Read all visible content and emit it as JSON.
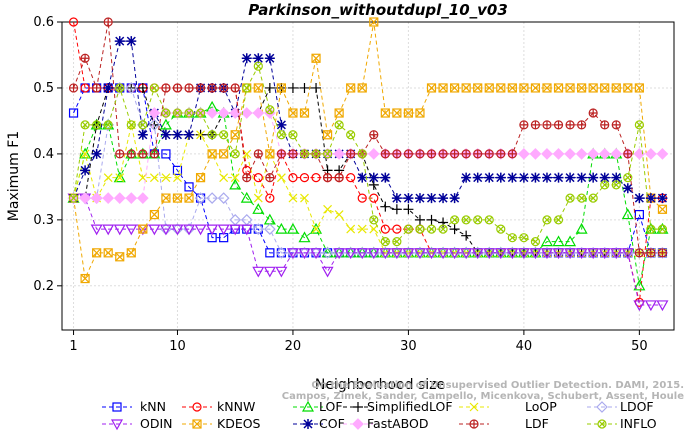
{
  "chart_data": {
    "type": "line",
    "title": "Parkinson_withoutdupl_10_v03",
    "xlabel": "Neighborhood size",
    "ylabel": "Maximum F1",
    "xlim": [
      1,
      52
    ],
    "ylim": [
      0.15,
      0.6
    ],
    "xticks": [
      "1",
      "10",
      "20",
      "30",
      "40",
      "50"
    ],
    "yticks": [
      "0.2",
      "0.3",
      "0.4",
      "0.5",
      "0.6"
    ],
    "legend_position": "bottom",
    "credit": [
      "Campos, Zimek, Sander, Campello, Micenkova, Schubert, Assent, Houle",
      "On the Evaluation of Unsupervised Outlier Detection. DAMI, 2015."
    ],
    "series": [
      {
        "name": "kNN",
        "color": "#0000ff",
        "marker": "square",
        "values": [
          0.462,
          0.5,
          0.5,
          0.5,
          0.5,
          0.5,
          0.5,
          0.4,
          0.4,
          0.375,
          0.35,
          0.333,
          0.273,
          0.273,
          0.286,
          0.286,
          0.286,
          0.25,
          0.25,
          0.25,
          0.25,
          0.25,
          0.25,
          0.25,
          0.25,
          0.25,
          0.25,
          0.25,
          0.25,
          0.25,
          0.25,
          0.25,
          0.25,
          0.25,
          0.25,
          0.25,
          0.25,
          0.25,
          0.25,
          0.25,
          0.25,
          0.25,
          0.25,
          0.25,
          0.25,
          0.25,
          0.25,
          0.25,
          0.25,
          0.308,
          0.25,
          0.25
        ]
      },
      {
        "name": "kNNW",
        "color": "#ff0000",
        "marker": "circle",
        "values": [
          0.6,
          0.5,
          0.5,
          0.5,
          0.5,
          0.5,
          0.5,
          0.5,
          0.5,
          0.5,
          0.5,
          0.5,
          0.5,
          0.5,
          0.5,
          0.375,
          0.364,
          0.333,
          0.4,
          0.364,
          0.364,
          0.364,
          0.364,
          0.364,
          0.364,
          0.333,
          0.333,
          0.286,
          0.286,
          0.286,
          0.286,
          0.25,
          0.25,
          0.25,
          0.25,
          0.25,
          0.25,
          0.25,
          0.25,
          0.25,
          0.25,
          0.25,
          0.25,
          0.25,
          0.25,
          0.25,
          0.25,
          0.25,
          0.25,
          0.175,
          0.333,
          0.333
        ]
      },
      {
        "name": "LOF",
        "color": "#00dd00",
        "marker": "triangle-up",
        "values": [
          0.333,
          0.4,
          0.444,
          0.444,
          0.364,
          0.4,
          0.4,
          0.4,
          0.444,
          0.462,
          0.462,
          0.462,
          0.471,
          0.462,
          0.353,
          0.333,
          0.316,
          0.3,
          0.286,
          0.286,
          0.273,
          0.286,
          0.25,
          0.25,
          0.25,
          0.25,
          0.25,
          0.25,
          0.25,
          0.25,
          0.25,
          0.25,
          0.25,
          0.25,
          0.25,
          0.25,
          0.25,
          0.25,
          0.25,
          0.25,
          0.25,
          0.267,
          0.267,
          0.267,
          0.286,
          0.4,
          0.4,
          0.4,
          0.308,
          0.2,
          0.286,
          0.286
        ]
      },
      {
        "name": "SimplifiedLOF",
        "color": "#000000",
        "marker": "plus",
        "values": [
          0.333,
          0.333,
          0.444,
          0.5,
          0.5,
          0.5,
          0.5,
          0.444,
          0.429,
          0.429,
          0.429,
          0.429,
          0.429,
          0.462,
          0.462,
          0.462,
          0.462,
          0.5,
          0.5,
          0.5,
          0.5,
          0.5,
          0.375,
          0.375,
          0.4,
          0.4,
          0.353,
          0.32,
          0.316,
          0.316,
          0.3,
          0.3,
          0.296,
          0.286,
          0.276,
          0.25,
          0.25,
          0.25,
          0.25,
          0.25,
          0.25,
          0.25,
          0.25,
          0.25,
          0.25,
          0.25,
          0.25,
          0.25,
          0.25,
          0.25,
          0.25,
          0.25
        ]
      },
      {
        "name": "LoOP",
        "color": "#e8e800",
        "marker": "cross",
        "values": [
          0.333,
          0.4,
          0.333,
          0.364,
          0.364,
          0.444,
          0.364,
          0.364,
          0.364,
          0.364,
          0.429,
          0.429,
          0.4,
          0.364,
          0.364,
          0.4,
          0.333,
          0.4,
          0.364,
          0.333,
          0.333,
          0.286,
          0.316,
          0.308,
          0.286,
          0.286,
          0.286,
          0.25,
          0.25,
          0.25,
          0.25,
          0.25,
          0.25,
          0.25,
          0.25,
          0.25,
          0.25,
          0.25,
          0.25,
          0.25,
          0.25,
          0.25,
          0.25,
          0.25,
          0.25,
          0.25,
          0.25,
          0.25,
          0.25,
          0.25,
          0.25,
          0.25
        ]
      },
      {
        "name": "LDOF",
        "color": "#aaaaee",
        "marker": "diamond",
        "values": [
          0.333,
          0.333,
          0.333,
          0.444,
          0.5,
          0.5,
          0.444,
          0.444,
          0.286,
          0.286,
          0.286,
          0.333,
          0.333,
          0.333,
          0.3,
          0.3,
          0.286,
          0.286,
          0.25,
          0.25,
          0.25,
          0.25,
          0.25,
          0.25,
          0.25,
          0.25,
          0.25,
          0.25,
          0.25,
          0.25,
          0.25,
          0.25,
          0.25,
          0.25,
          0.25,
          0.25,
          0.25,
          0.25,
          0.25,
          0.25,
          0.25,
          0.25,
          0.25,
          0.25,
          0.25,
          0.25,
          0.25,
          0.25,
          0.25,
          0.25,
          0.25,
          0.25
        ]
      },
      {
        "name": "ODIN",
        "color": "#a020f0",
        "marker": "triangle-down",
        "values": [
          0.333,
          0.333,
          0.286,
          0.286,
          0.286,
          0.286,
          0.286,
          0.286,
          0.286,
          0.286,
          0.286,
          0.286,
          0.286,
          0.286,
          0.286,
          0.286,
          0.222,
          0.222,
          0.222,
          0.25,
          0.25,
          0.25,
          0.222,
          0.25,
          0.25,
          0.25,
          0.25,
          0.25,
          0.25,
          0.25,
          0.25,
          0.25,
          0.25,
          0.25,
          0.25,
          0.25,
          0.25,
          0.25,
          0.25,
          0.25,
          0.25,
          0.25,
          0.25,
          0.25,
          0.25,
          0.25,
          0.25,
          0.25,
          0.25,
          0.171,
          0.171,
          0.171
        ]
      },
      {
        "name": "KDEOS",
        "color": "#f0a800",
        "marker": "square-x",
        "values": [
          0.333,
          0.211,
          0.25,
          0.25,
          0.244,
          0.25,
          0.286,
          0.308,
          0.333,
          0.333,
          0.333,
          0.364,
          0.4,
          0.4,
          0.429,
          0.5,
          0.5,
          0.4,
          0.5,
          0.462,
          0.462,
          0.545,
          0.429,
          0.462,
          0.5,
          0.5,
          0.6,
          0.462,
          0.462,
          0.462,
          0.462,
          0.5,
          0.5,
          0.5,
          0.5,
          0.5,
          0.5,
          0.5,
          0.5,
          0.5,
          0.5,
          0.5,
          0.5,
          0.5,
          0.5,
          0.5,
          0.5,
          0.5,
          0.5,
          0.5,
          0.333,
          0.316
        ]
      },
      {
        "name": "COF",
        "color": "#000099",
        "marker": "star",
        "values": [
          0.333,
          0.375,
          0.4,
          0.5,
          0.571,
          0.571,
          0.429,
          0.462,
          0.429,
          0.429,
          0.429,
          0.5,
          0.5,
          0.5,
          0.462,
          0.545,
          0.545,
          0.545,
          0.444,
          0.4,
          0.4,
          0.4,
          0.4,
          0.4,
          0.4,
          0.364,
          0.364,
          0.364,
          0.333,
          0.333,
          0.333,
          0.333,
          0.333,
          0.333,
          0.364,
          0.364,
          0.364,
          0.364,
          0.364,
          0.364,
          0.364,
          0.364,
          0.364,
          0.364,
          0.364,
          0.364,
          0.364,
          0.364,
          0.348,
          0.333,
          0.333,
          0.333
        ]
      },
      {
        "name": "FastABOD",
        "color": "#ffaaff",
        "marker": "diamond-filled",
        "values": [
          0.333,
          0.333,
          0.333,
          0.333,
          0.333,
          0.333,
          0.333,
          0.462,
          0.462,
          0.462,
          0.462,
          0.462,
          0.462,
          0.462,
          0.462,
          0.462,
          0.462,
          0.462,
          0.4,
          0.4,
          0.4,
          0.4,
          0.4,
          0.4,
          0.4,
          0.4,
          0.4,
          0.4,
          0.4,
          0.4,
          0.4,
          0.4,
          0.4,
          0.4,
          0.4,
          0.4,
          0.4,
          0.4,
          0.4,
          0.4,
          0.4,
          0.4,
          0.4,
          0.4,
          0.4,
          0.4,
          0.4,
          0.4,
          0.4,
          0.4,
          0.4,
          0.4
        ]
      },
      {
        "name": "LDF",
        "color": "#bb2222",
        "marker": "circle-plus",
        "values": [
          0.5,
          0.545,
          0.5,
          0.6,
          0.4,
          0.4,
          0.4,
          0.4,
          0.5,
          0.5,
          0.5,
          0.5,
          0.5,
          0.5,
          0.5,
          0.364,
          0.4,
          0.364,
          0.4,
          0.4,
          0.4,
          0.4,
          0.364,
          0.364,
          0.4,
          0.4,
          0.429,
          0.4,
          0.4,
          0.4,
          0.4,
          0.4,
          0.4,
          0.4,
          0.4,
          0.4,
          0.4,
          0.4,
          0.4,
          0.444,
          0.444,
          0.444,
          0.444,
          0.444,
          0.444,
          0.462,
          0.444,
          0.444,
          0.4,
          0.25,
          0.25,
          0.25
        ]
      },
      {
        "name": "INFLO",
        "color": "#99cc00",
        "marker": "circle-x",
        "values": [
          0.333,
          0.444,
          0.444,
          0.444,
          0.5,
          0.444,
          0.444,
          0.5,
          0.462,
          0.462,
          0.462,
          0.462,
          0.429,
          0.429,
          0.4,
          0.5,
          0.533,
          0.467,
          0.429,
          0.429,
          0.4,
          0.4,
          0.4,
          0.444,
          0.429,
          0.4,
          0.3,
          0.267,
          0.267,
          0.286,
          0.286,
          0.286,
          0.286,
          0.3,
          0.3,
          0.3,
          0.3,
          0.286,
          0.273,
          0.273,
          0.267,
          0.3,
          0.3,
          0.333,
          0.333,
          0.333,
          0.353,
          0.353,
          0.364,
          0.444,
          0.286,
          0.286
        ]
      }
    ]
  }
}
